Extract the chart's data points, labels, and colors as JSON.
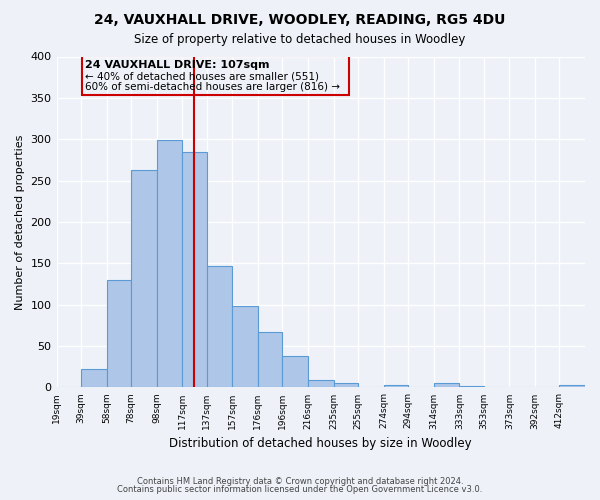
{
  "title": "24, VAUXHALL DRIVE, WOODLEY, READING, RG5 4DU",
  "subtitle": "Size of property relative to detached houses in Woodley",
  "xlabel": "Distribution of detached houses by size in Woodley",
  "ylabel": "Number of detached properties",
  "bar_labels": [
    "19sqm",
    "39sqm",
    "58sqm",
    "78sqm",
    "98sqm",
    "117sqm",
    "137sqm",
    "157sqm",
    "176sqm",
    "196sqm",
    "216sqm",
    "235sqm",
    "255sqm",
    "274sqm",
    "294sqm",
    "314sqm",
    "333sqm",
    "353sqm",
    "373sqm",
    "392sqm",
    "412sqm"
  ],
  "bar_heights": [
    0,
    22,
    130,
    263,
    299,
    285,
    147,
    98,
    67,
    38,
    9,
    5,
    0,
    3,
    0,
    5,
    2,
    0,
    0,
    0,
    3
  ],
  "bar_color": "#aec6e8",
  "bar_edge_color": "#5a9bd5",
  "vline_color": "#cc0000",
  "vline_x": 107,
  "annotation_box_color": "#cc0000",
  "property_label": "24 VAUXHALL DRIVE: 107sqm",
  "annotation_line1": "← 40% of detached houses are smaller (551)",
  "annotation_line2": "60% of semi-detached houses are larger (816) →",
  "ylim": [
    0,
    400
  ],
  "footer1": "Contains HM Land Registry data © Crown copyright and database right 2024.",
  "footer2": "Contains public sector information licensed under the Open Government Licence v3.0.",
  "background_color": "#eef2f8",
  "grid_color": "#ffffff",
  "bin_edges": [
    0,
    19,
    39,
    58,
    78,
    98,
    117,
    137,
    157,
    176,
    196,
    216,
    235,
    255,
    274,
    294,
    314,
    333,
    353,
    373,
    392,
    412
  ]
}
